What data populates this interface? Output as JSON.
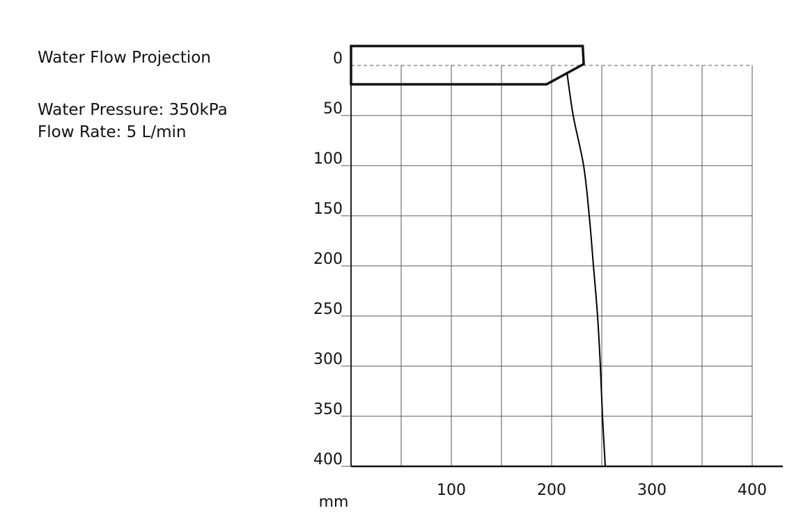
{
  "info": {
    "title": "Water Flow Projection",
    "pressure": "Water Pressure: 350kPa",
    "flow_rate": "Flow Rate: 5 L/min"
  },
  "chart_data": {
    "type": "line",
    "title": "Water Flow Projection",
    "xlabel": "mm",
    "ylabel": "",
    "xlim": [
      0,
      400
    ],
    "ylim": [
      0,
      400
    ],
    "y_inverted": true,
    "grid": true,
    "x_ticks": [
      100,
      200,
      300,
      400
    ],
    "y_ticks": [
      0,
      50,
      100,
      150,
      200,
      250,
      300,
      350,
      400
    ],
    "x_gridlines": [
      50,
      100,
      150,
      200,
      250,
      300,
      350,
      400
    ],
    "y_gridlines": [
      50,
      100,
      150,
      200,
      250,
      300,
      350,
      400
    ],
    "zero_line": "dashed",
    "series": [
      {
        "points": [
          [
            215.3,
            6.9
          ],
          [
            221.5,
            50
          ],
          [
            231.9,
            100
          ],
          [
            237.5,
            150
          ],
          [
            241.7,
            200
          ],
          [
            245.8,
            250
          ],
          [
            248.6,
            300
          ],
          [
            250.7,
            350
          ],
          [
            253.5,
            400
          ]
        ],
        "color": "#000000"
      }
    ],
    "nozzle_outline": [
      [
        0,
        -19.4
      ],
      [
        231,
        -19.4
      ],
      [
        232,
        -1.4
      ],
      [
        195,
        18.8
      ],
      [
        0,
        18.8
      ]
    ],
    "colors": {
      "line": "#000000",
      "grid": "#555555"
    }
  }
}
